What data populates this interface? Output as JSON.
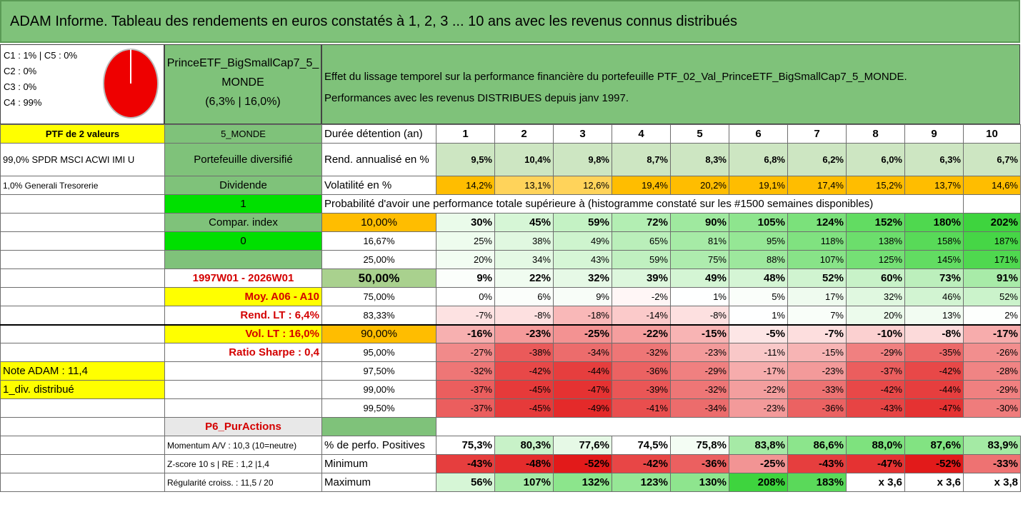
{
  "title": "ADAM Informe. Tableau des rendements en euros constatés à 1, 2, 3 ... 10 ans avec les revenus connus distribués",
  "classes": [
    "C1 : 1% | C5 : 0%",
    "C2 : 0%",
    "C3 : 0%",
    "C4 : 99%"
  ],
  "pie": {
    "c4_share": 0.99,
    "main_color": "#ee0000"
  },
  "fund": {
    "name1": "PrinceETF_BigSmallCap7_5_",
    "name2": "MONDE",
    "stats": "(6,3% | 16,0%)"
  },
  "description": {
    "line1": "Effet du lissage temporel sur la performance financière du portefeuille PTF_02_Val_PrinceETF_BigSmallCap7_5_MONDE.",
    "line2": "Performances avec les revenus DISTRIBUES depuis janv 1997."
  },
  "left": {
    "ptf": "PTF de 2 valeurs",
    "holding1": "99,0% SPDR MSCI ACWI IMI U",
    "holding2": "1,0% Generali Tresorerie"
  },
  "mid": {
    "zone": "5_MONDE",
    "diversified": "Portefeuille diversifié",
    "dividend": "Dividende",
    "one": "1",
    "compar": "Compar. index",
    "zero": "0",
    "period": "1997W01 - 2026W01",
    "moy": "Moy. A06 - A10",
    "rend_lt": "Rend. LT : 6,4%",
    "vol_lt": "Vol. LT : 16,0%",
    "sharpe": "Ratio Sharpe : 0,4",
    "note": "Note ADAM : 11,4",
    "div": "1_div. distribué",
    "p6": "P6_PurActions",
    "momentum": "Momentum A/V : 10,3 (10=neutre)",
    "zscore": "Z-score 10 s | RE : 1,2 |1,4",
    "regul": "Régularité croiss. : 11,5 / 20"
  },
  "header_label": "Durée détention (an)",
  "years": [
    "1",
    "2",
    "3",
    "4",
    "5",
    "6",
    "7",
    "8",
    "9",
    "10"
  ],
  "rend_label": "Rend. annualisé en %",
  "rend": [
    "9,5%",
    "10,4%",
    "9,8%",
    "8,7%",
    "8,3%",
    "6,8%",
    "6,2%",
    "6,0%",
    "6,3%",
    "6,7%"
  ],
  "vol_label": "Volatilité en %",
  "vol": [
    "14,2%",
    "13,1%",
    "12,6%",
    "19,4%",
    "20,2%",
    "19,1%",
    "17,4%",
    "15,2%",
    "13,7%",
    "14,6%"
  ],
  "prob_label": "Probabilité d'avoir une performance totale supérieure à (histogramme constaté sur les #1500 semaines disponibles)",
  "quantiles": [
    {
      "q": "10,00%",
      "vals": [
        "30%",
        "45%",
        "59%",
        "72%",
        "90%",
        "105%",
        "124%",
        "152%",
        "180%",
        "202%"
      ],
      "colors": [
        "#eafbea",
        "#d6f6d6",
        "#c4f2c4",
        "#b3eeb3",
        "#9fe99f",
        "#8ee58e",
        "#7be17b",
        "#62dc62",
        "#4fd84f",
        "#3ed43e"
      ]
    },
    {
      "q": "16,67%",
      "vals": [
        "25%",
        "38%",
        "49%",
        "65%",
        "81%",
        "95%",
        "118%",
        "138%",
        "158%",
        "187%"
      ],
      "colors": [
        "#eefcee",
        "#e0f8e0",
        "#ceF4ce",
        "#baefba",
        "#a6eba6",
        "#95e795",
        "#80e280",
        "#6cde6c",
        "#58da58",
        "#46d646"
      ]
    },
    {
      "q": "25,00%",
      "vals": [
        "20%",
        "34%",
        "43%",
        "59%",
        "75%",
        "88%",
        "107%",
        "125%",
        "145%",
        "171%"
      ],
      "colors": [
        "#f2fdf2",
        "#e4f9e4",
        "#d6f6d6",
        "#c0f0c0",
        "#aeecae",
        "#9de89d",
        "#88e388",
        "#75e075",
        "#62dc62",
        "#4fd84f"
      ]
    },
    {
      "q": "50,00%",
      "vals": [
        "9%",
        "22%",
        "32%",
        "39%",
        "49%",
        "48%",
        "52%",
        "60%",
        "73%",
        "91%"
      ],
      "colors": [
        "#fbfefb",
        "#f0fcf0",
        "#e6f9e6",
        "#ddf7dd",
        "#d4f5d4",
        "#d5f5d5",
        "#d0f4d0",
        "#c8f2c8",
        "#bcefbc",
        "#a8eba8"
      ]
    },
    {
      "q": "75,00%",
      "vals": [
        "0%",
        "6%",
        "9%",
        "-2%",
        "1%",
        "5%",
        "17%",
        "32%",
        "46%",
        "52%"
      ],
      "colors": [
        "#ffffff",
        "#fbfefb",
        "#f8fdf8",
        "#fff6f6",
        "#feffff",
        "#fafefa",
        "#effbef",
        "#e0f8e0",
        "#d2f4d2",
        "#cbf3cb"
      ]
    },
    {
      "q": "83,33%",
      "vals": [
        "-7%",
        "-8%",
        "-18%",
        "-14%",
        "-8%",
        "1%",
        "7%",
        "20%",
        "13%",
        "2%"
      ],
      "colors": [
        "#fde2e2",
        "#fde0e0",
        "#f9b8b8",
        "#fbcaca",
        "#fde0e0",
        "#feffff",
        "#f9fef9",
        "#ecfbec",
        "#f2fcf2",
        "#fdfffd"
      ]
    },
    {
      "q": "90,00%",
      "vals": [
        "-16%",
        "-23%",
        "-25%",
        "-22%",
        "-15%",
        "-5%",
        "-7%",
        "-10%",
        "-8%",
        "-17%"
      ],
      "colors": [
        "#f7b0b0",
        "#f59a9a",
        "#f39292",
        "#f59e9e",
        "#f8b4b4",
        "#fde6e6",
        "#fddede",
        "#fbd0d0",
        "#fcdada",
        "#f7acac"
      ]
    },
    {
      "q": "95,00%",
      "vals": [
        "-27%",
        "-38%",
        "-34%",
        "-32%",
        "-23%",
        "-11%",
        "-15%",
        "-29%",
        "-35%",
        "-26%"
      ],
      "colors": [
        "#f18a8a",
        "#ea5a5a",
        "#ec6c6c",
        "#ee7676",
        "#f39a9a",
        "#f9c8c8",
        "#f7b4b4",
        "#f08080",
        "#ec6868",
        "#f28e8e"
      ]
    },
    {
      "q": "97,50%",
      "vals": [
        "-32%",
        "-42%",
        "-44%",
        "-36%",
        "-29%",
        "-17%",
        "-23%",
        "-37%",
        "-42%",
        "-28%"
      ],
      "colors": [
        "#ee7676",
        "#e84848",
        "#e63e3e",
        "#eb6262",
        "#f08080",
        "#f6acac",
        "#f39a9a",
        "#eb5e5e",
        "#e84848",
        "#f08484"
      ]
    },
    {
      "q": "99,00%",
      "vals": [
        "-37%",
        "-45%",
        "-47%",
        "-39%",
        "-32%",
        "-22%",
        "-33%",
        "-42%",
        "-44%",
        "-29%"
      ],
      "colors": [
        "#eb5e5e",
        "#e63a3a",
        "#e53232",
        "#ea5656",
        "#ee7676",
        "#f39e9e",
        "#ed7272",
        "#e84848",
        "#e63e3e",
        "#f08080"
      ]
    },
    {
      "q": "99,50%",
      "vals": [
        "-37%",
        "-45%",
        "-49%",
        "-41%",
        "-34%",
        "-23%",
        "-36%",
        "-43%",
        "-47%",
        "-30%"
      ],
      "colors": [
        "#eb5e5e",
        "#e63a3a",
        "#e42a2a",
        "#e94e4e",
        "#ec6c6c",
        "#f39a9a",
        "#eb6262",
        "#e74444",
        "#e53232",
        "#ef7c7c"
      ]
    }
  ],
  "pos_label": "% de perfo. Positives",
  "pos": [
    "75,3%",
    "80,3%",
    "77,6%",
    "74,5%",
    "75,8%",
    "83,8%",
    "86,6%",
    "88,0%",
    "87,6%",
    "83,9%"
  ],
  "pos_colors": [
    "#ffffff",
    "#c8f2c8",
    "#e6f9e6",
    "#ffffff",
    "#f4fdf4",
    "#a6eaa6",
    "#8ce58c",
    "#7ee27e",
    "#82e382",
    "#a4eaa4"
  ],
  "min_label": "Minimum",
  "min": [
    "-43%",
    "-48%",
    "-52%",
    "-42%",
    "-36%",
    "-25%",
    "-43%",
    "-47%",
    "-52%",
    "-33%"
  ],
  "min_colors": [
    "#e63e3e",
    "#e42c2c",
    "#e21a1a",
    "#e84646",
    "#eb6060",
    "#f29494",
    "#e63e3e",
    "#e53232",
    "#e21a1a",
    "#ee7272"
  ],
  "max_label": "Maximum",
  "max": [
    "56%",
    "107%",
    "132%",
    "123%",
    "130%",
    "208%",
    "183%",
    "x 3,6",
    "x 3,6",
    "x 3,8"
  ],
  "max_colors": [
    "#d6f6d6",
    "#a6eaa6",
    "#8ce58c",
    "#96e796",
    "#8ee58e",
    "#3ed43e",
    "#5ad95a",
    "#ffffff",
    "#ffffff",
    "#ffffff"
  ],
  "colors": {
    "green": "#7fc27a",
    "yellow": "#ffff00",
    "orange": "#ffbd00",
    "bright_green": "#00e000",
    "label_red": "#d40000"
  }
}
